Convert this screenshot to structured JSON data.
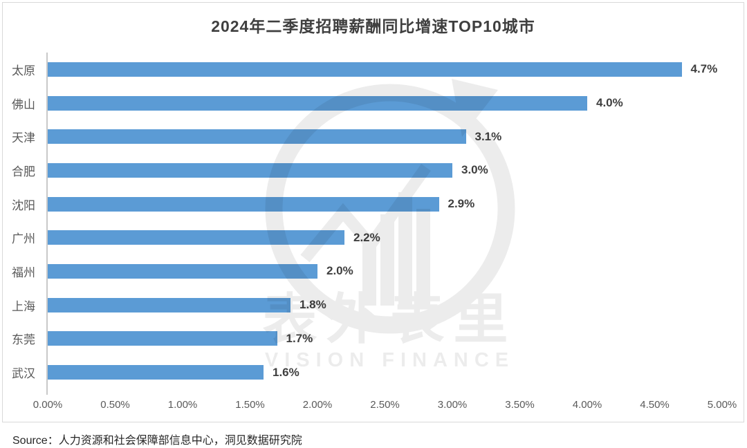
{
  "page": {
    "source": "Source：人力资源和社会保障部信息中心，洞见数据研究院"
  },
  "watermark": {
    "cn": "表外表里",
    "en": "VISION FINANCE",
    "logo": "vision-finance-logo"
  },
  "colors": {
    "bar": "#5b9bd5",
    "title_text": "#3f3f3f",
    "label_text": "#595959",
    "axis_line": "#c9c9c9",
    "card_border": "#d9d9d9"
  },
  "chart_data": {
    "type": "bar",
    "orientation": "horizontal",
    "title": "2024年二季度招聘薪酬同比增速TOP10城市",
    "categories": [
      "太原",
      "佛山",
      "天津",
      "合肥",
      "沈阳",
      "广州",
      "福州",
      "上海",
      "东莞",
      "武汉"
    ],
    "values": [
      4.7,
      4.0,
      3.1,
      3.0,
      2.9,
      2.2,
      2.0,
      1.8,
      1.7,
      1.6
    ],
    "value_labels": [
      "4.7%",
      "4.0%",
      "3.1%",
      "3.0%",
      "2.9%",
      "2.2%",
      "2.0%",
      "1.8%",
      "1.7%",
      "1.6%"
    ],
    "xlim": [
      0,
      5
    ],
    "x_ticks": [
      "0.00%",
      "0.50%",
      "1.00%",
      "1.50%",
      "2.00%",
      "2.50%",
      "3.00%",
      "3.50%",
      "4.00%",
      "4.50%",
      "5.00%"
    ],
    "xlabel": "",
    "ylabel": "",
    "grid": false,
    "legend": false,
    "data_label_position": "outside-end"
  }
}
